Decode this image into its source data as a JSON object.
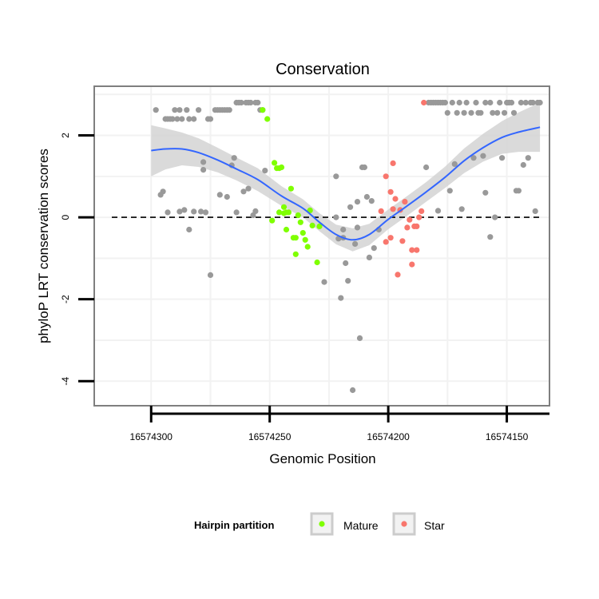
{
  "chart_data": {
    "type": "scatter",
    "title": "Conservation",
    "xlabel": "Genomic Position",
    "ylabel": "phyloP LRT conservation scores",
    "x_reversed": true,
    "xlim": [
      16574324,
      16574132
    ],
    "ylim": [
      -4.6,
      3.2
    ],
    "x_ticks": [
      16574300,
      16574250,
      16574200,
      16574150
    ],
    "x_tick_labels": [
      "16574300",
      "16574250",
      "16574200",
      "16574150"
    ],
    "y_ticks": [
      2,
      0,
      -2,
      -4
    ],
    "y_tick_labels": [
      "2",
      "0",
      "-2",
      "-4"
    ],
    "reference_line": 0,
    "legend": {
      "title": "Hairpin partition",
      "position": "bottom",
      "entries": [
        {
          "label": "Mature",
          "color": "#7fff00"
        },
        {
          "label": "Star",
          "color": "#f8766d"
        }
      ]
    },
    "colors": {
      "other": "#999999",
      "mature": "#7fff00",
      "star": "#f8766d",
      "smooth": "#3366ff",
      "band": "#d3d3d3",
      "panel_border": "#7f7f7f",
      "grid": "#f2f2f2"
    },
    "series": [
      {
        "name": "Other",
        "color": "#999999",
        "points": [
          [
            16574298,
            2.62
          ],
          [
            16574296,
            0.55
          ],
          [
            16574295,
            0.63
          ],
          [
            16574294,
            2.4
          ],
          [
            16574293,
            2.4
          ],
          [
            16574293,
            0.12
          ],
          [
            16574292,
            2.4
          ],
          [
            16574291,
            2.4
          ],
          [
            16574290,
            2.62
          ],
          [
            16574289,
            2.4
          ],
          [
            16574288,
            0.14
          ],
          [
            16574288,
            2.62
          ],
          [
            16574287,
            2.4
          ],
          [
            16574286,
            0.18
          ],
          [
            16574285,
            2.62
          ],
          [
            16574284,
            2.4
          ],
          [
            16574284,
            -0.3
          ],
          [
            16574282,
            2.4
          ],
          [
            16574282,
            0.14
          ],
          [
            16574280,
            2.62
          ],
          [
            16574279,
            0.14
          ],
          [
            16574278,
            1.16
          ],
          [
            16574278,
            1.35
          ],
          [
            16574277,
            0.12
          ],
          [
            16574276,
            2.4
          ],
          [
            16574275,
            2.4
          ],
          [
            16574275,
            -1.41
          ],
          [
            16574273,
            2.62
          ],
          [
            16574272,
            2.62
          ],
          [
            16574271,
            0.55
          ],
          [
            16574271,
            2.62
          ],
          [
            16574270,
            2.62
          ],
          [
            16574269,
            2.62
          ],
          [
            16574268,
            0.5
          ],
          [
            16574268,
            2.62
          ],
          [
            16574267,
            2.62
          ],
          [
            16574266,
            1.27
          ],
          [
            16574265,
            1.45
          ],
          [
            16574264,
            0.12
          ],
          [
            16574264,
            2.8
          ],
          [
            16574263,
            2.8
          ],
          [
            16574262,
            2.8
          ],
          [
            16574261,
            0.63
          ],
          [
            16574260,
            2.8
          ],
          [
            16574259,
            2.8
          ],
          [
            16574259,
            0.7
          ],
          [
            16574258,
            2.8
          ],
          [
            16574257,
            0.05
          ],
          [
            16574256,
            0.15
          ],
          [
            16574256,
            2.8
          ],
          [
            16574255,
            2.8
          ],
          [
            16574254,
            2.62
          ],
          [
            16574253,
            2.62
          ],
          [
            16574252,
            1.14
          ],
          [
            16574227,
            -1.58
          ],
          [
            16574222,
            1.0
          ],
          [
            16574222,
            0.0
          ],
          [
            16574221,
            -0.52
          ],
          [
            16574220,
            -1.97
          ],
          [
            16574219,
            -0.5
          ],
          [
            16574219,
            -0.3
          ],
          [
            16574218,
            -1.12
          ],
          [
            16574217,
            -1.55
          ],
          [
            16574216,
            0.25
          ],
          [
            16574215,
            -4.22
          ],
          [
            16574214,
            -0.65
          ],
          [
            16574213,
            -0.25
          ],
          [
            16574213,
            0.38
          ],
          [
            16574212,
            -2.95
          ],
          [
            16574211,
            1.22
          ],
          [
            16574210,
            1.22
          ],
          [
            16574209,
            0.5
          ],
          [
            16574208,
            -0.98
          ],
          [
            16574207,
            0.4
          ],
          [
            16574206,
            -0.75
          ],
          [
            16574204,
            -0.3
          ],
          [
            16574184,
            1.22
          ],
          [
            16574183,
            2.8
          ],
          [
            16574182,
            2.8
          ],
          [
            16574181,
            2.8
          ],
          [
            16574180,
            2.8
          ],
          [
            16574179,
            2.8
          ],
          [
            16574179,
            0.16
          ],
          [
            16574178,
            2.8
          ],
          [
            16574177,
            2.8
          ],
          [
            16574176,
            2.8
          ],
          [
            16574175,
            2.55
          ],
          [
            16574174,
            0.65
          ],
          [
            16574173,
            2.8
          ],
          [
            16574172,
            1.3
          ],
          [
            16574171,
            2.55
          ],
          [
            16574170,
            2.8
          ],
          [
            16574169,
            0.2
          ],
          [
            16574168,
            2.55
          ],
          [
            16574167,
            2.8
          ],
          [
            16574165,
            2.55
          ],
          [
            16574164,
            1.45
          ],
          [
            16574163,
            2.8
          ],
          [
            16574162,
            2.55
          ],
          [
            16574161,
            2.55
          ],
          [
            16574160,
            1.5
          ],
          [
            16574159,
            2.8
          ],
          [
            16574159,
            0.6
          ],
          [
            16574157,
            2.8
          ],
          [
            16574157,
            -0.48
          ],
          [
            16574156,
            2.55
          ],
          [
            16574155,
            0.0
          ],
          [
            16574154,
            2.55
          ],
          [
            16574153,
            2.8
          ],
          [
            16574152,
            1.45
          ],
          [
            16574151,
            2.55
          ],
          [
            16574150,
            2.8
          ],
          [
            16574149,
            2.8
          ],
          [
            16574148,
            2.8
          ],
          [
            16574147,
            2.55
          ],
          [
            16574146,
            0.65
          ],
          [
            16574145,
            0.65
          ],
          [
            16574144,
            2.8
          ],
          [
            16574143,
            1.28
          ],
          [
            16574142,
            2.8
          ],
          [
            16574141,
            1.45
          ],
          [
            16574140,
            2.8
          ],
          [
            16574139,
            2.8
          ],
          [
            16574138,
            0.15
          ],
          [
            16574137,
            2.8
          ],
          [
            16574136,
            2.8
          ]
        ]
      },
      {
        "name": "Mature",
        "color": "#7fff00",
        "points": [
          [
            16574253,
            2.62
          ],
          [
            16574251,
            2.4
          ],
          [
            16574249,
            -0.08
          ],
          [
            16574248,
            1.33
          ],
          [
            16574247,
            1.2
          ],
          [
            16574246,
            1.2
          ],
          [
            16574246,
            0.12
          ],
          [
            16574245,
            1.22
          ],
          [
            16574244,
            0.1
          ],
          [
            16574244,
            0.25
          ],
          [
            16574243,
            0.12
          ],
          [
            16574243,
            -0.3
          ],
          [
            16574242,
            0.12
          ],
          [
            16574241,
            0.7
          ],
          [
            16574240,
            -0.5
          ],
          [
            16574239,
            -0.9
          ],
          [
            16574239,
            -0.5
          ],
          [
            16574238,
            0.05
          ],
          [
            16574237,
            -0.12
          ],
          [
            16574236,
            -0.38
          ],
          [
            16574235,
            -0.55
          ],
          [
            16574234,
            -0.72
          ],
          [
            16574233,
            0.17
          ],
          [
            16574232,
            -0.2
          ],
          [
            16574230,
            -1.1
          ],
          [
            16574229,
            -0.22
          ]
        ]
      },
      {
        "name": "Star",
        "color": "#f8766d",
        "points": [
          [
            16574203,
            0.15
          ],
          [
            16574201,
            1.0
          ],
          [
            16574201,
            -0.6
          ],
          [
            16574199,
            0.62
          ],
          [
            16574199,
            -0.5
          ],
          [
            16574198,
            0.2
          ],
          [
            16574198,
            1.32
          ],
          [
            16574197,
            0.45
          ],
          [
            16574196,
            -1.4
          ],
          [
            16574195,
            0.18
          ],
          [
            16574194,
            -0.58
          ],
          [
            16574193,
            0.38
          ],
          [
            16574192,
            -0.25
          ],
          [
            16574191,
            -0.06
          ],
          [
            16574190,
            -0.8
          ],
          [
            16574190,
            -1.15
          ],
          [
            16574189,
            -0.22
          ],
          [
            16574188,
            -0.22
          ],
          [
            16574188,
            -0.8
          ],
          [
            16574187,
            0.0
          ],
          [
            16574186,
            0.15
          ],
          [
            16574185,
            2.8
          ]
        ]
      }
    ],
    "smooth": {
      "method": "loess",
      "points": [
        [
          16574300,
          1.63
        ],
        [
          16574294,
          1.67
        ],
        [
          16574287,
          1.67
        ],
        [
          16574280,
          1.58
        ],
        [
          16574272,
          1.4
        ],
        [
          16574264,
          1.18
        ],
        [
          16574255,
          0.92
        ],
        [
          16574245,
          0.52
        ],
        [
          16574236,
          0.22
        ],
        [
          16574229,
          -0.12
        ],
        [
          16574222,
          -0.42
        ],
        [
          16574215,
          -0.55
        ],
        [
          16574208,
          -0.42
        ],
        [
          16574200,
          -0.05
        ],
        [
          16574192,
          0.28
        ],
        [
          16574184,
          0.62
        ],
        [
          16574176,
          0.98
        ],
        [
          16574168,
          1.38
        ],
        [
          16574160,
          1.7
        ],
        [
          16574152,
          1.95
        ],
        [
          16574145,
          2.08
        ],
        [
          16574136,
          2.2
        ]
      ],
      "band": [
        [
          16574300,
          1.0,
          2.25
        ],
        [
          16574294,
          1.17,
          2.17
        ],
        [
          16574287,
          1.27,
          2.07
        ],
        [
          16574280,
          1.23,
          1.93
        ],
        [
          16574272,
          1.1,
          1.7
        ],
        [
          16574264,
          0.9,
          1.46
        ],
        [
          16574255,
          0.64,
          1.2
        ],
        [
          16574245,
          0.28,
          0.76
        ],
        [
          16574236,
          0.0,
          0.44
        ],
        [
          16574229,
          -0.34,
          0.1
        ],
        [
          16574222,
          -0.66,
          -0.18
        ],
        [
          16574215,
          -0.83,
          -0.27
        ],
        [
          16574208,
          -0.68,
          -0.16
        ],
        [
          16574200,
          -0.29,
          0.19
        ],
        [
          16574192,
          0.04,
          0.52
        ],
        [
          16574184,
          0.38,
          0.86
        ],
        [
          16574176,
          0.72,
          1.24
        ],
        [
          16574168,
          1.08,
          1.68
        ],
        [
          16574160,
          1.36,
          2.04
        ],
        [
          16574152,
          1.55,
          2.35
        ],
        [
          16574145,
          1.6,
          2.56
        ],
        [
          16574136,
          1.6,
          2.8
        ]
      ]
    }
  }
}
